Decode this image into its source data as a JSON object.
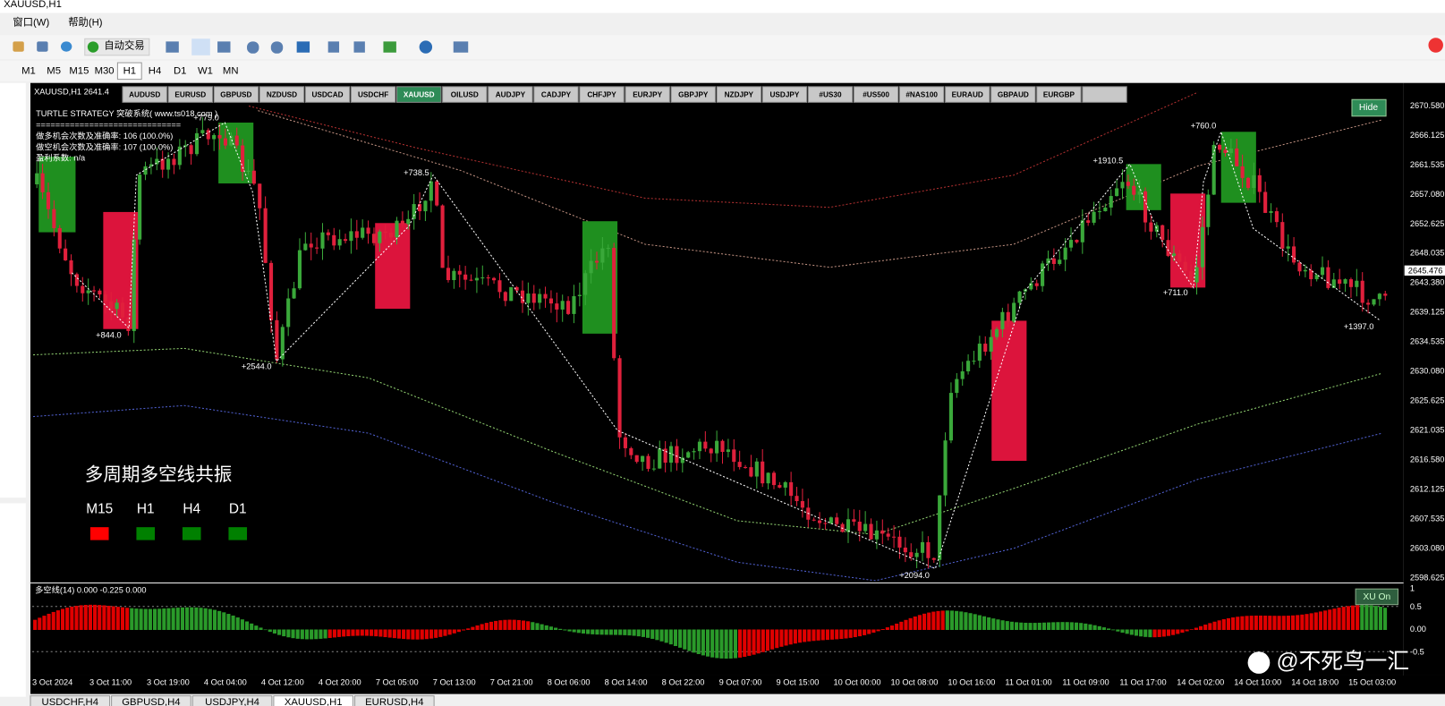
{
  "window_title": "XAUUSD,H1",
  "menu": [
    "窗口(W)",
    "帮助(H)"
  ],
  "toolbar": {
    "auto_trade": "自动交易"
  },
  "timeframes": [
    "M1",
    "M5",
    "M15",
    "M30",
    "H1",
    "H4",
    "D1",
    "W1",
    "MN"
  ],
  "symbols": [
    "AUDUSD",
    "EURUSD",
    "GBPUSD",
    "NZDUSD",
    "USDCAD",
    "USDCHF",
    "XAUUSD",
    "OILUSD",
    "AUDJPY",
    "CADJPY",
    "CHFJPY",
    "EURJPY",
    "GBPJPY",
    "NZDJPY",
    "USDJPY",
    "#US30",
    "#US500",
    "#NAS100",
    "EURAUD",
    "GBPAUD",
    "EURGBP"
  ],
  "chart": {
    "header": "XAUUSD,H1  2641.4",
    "strategy_lines": [
      "TURTLE STRATEGY 突破系统( www.ts018.com )",
      "==============================",
      "做多机会次数及准确率: 106 (100.0%)",
      "做空机会次数及准确率: 107 (100.0%)",
      "盈利系数: n/a"
    ],
    "annotations": [
      "+779.0",
      "+844.0",
      "+2544.0",
      "+738.5",
      "+2094.0",
      "+1910.5",
      "+711.0",
      "+760.0",
      "+1397.0"
    ],
    "hide_button": "Hide",
    "resonance_title": "多周期多空线共振",
    "resonance": [
      {
        "label": "M15",
        "color": "#ff0000"
      },
      {
        "label": "H1",
        "color": "#008000"
      },
      {
        "label": "H4",
        "color": "#008000"
      },
      {
        "label": "D1",
        "color": "#008000"
      }
    ],
    "price_labels": [
      "2670.580",
      "2666.125",
      "2661.535",
      "2657.080",
      "2652.625",
      "2648.035",
      "2643.380",
      "2639.125",
      "2634.535",
      "2630.080",
      "2625.625",
      "2621.035",
      "2616.580",
      "2612.125",
      "2607.535",
      "2603.080",
      "2598.625"
    ],
    "current_price": "2645.476",
    "time_labels": [
      "3 Oct 2024",
      "3 Oct 11:00",
      "3 Oct 19:00",
      "4 Oct 04:00",
      "4 Oct 12:00",
      "4 Oct 20:00",
      "7 Oct 05:00",
      "7 Oct 13:00",
      "7 Oct 21:00",
      "8 Oct 06:00",
      "8 Oct 14:00",
      "8 Oct 22:00",
      "9 Oct 07:00",
      "9 Oct 15:00",
      "10 Oct 00:00",
      "10 Oct 08:00",
      "10 Oct 16:00",
      "11 Oct 01:00",
      "11 Oct 09:00",
      "11 Oct 17:00",
      "14 Oct 02:00",
      "14 Oct 10:00",
      "14 Oct 18:00",
      "15 Oct 03:00"
    ]
  },
  "indicator": {
    "header": "多空线(14) 0.000 -0.225 0.000",
    "button": "XU On",
    "scale": [
      "1",
      "0.5",
      "0.00",
      "-0.5"
    ]
  },
  "tabs": [
    "USDCHF,H4",
    "GBPUSD,H4",
    "USDJPY,H4",
    "XAUUSD,H1",
    "EURUSD,H4"
  ],
  "watermark": "@不死鸟一汇"
}
